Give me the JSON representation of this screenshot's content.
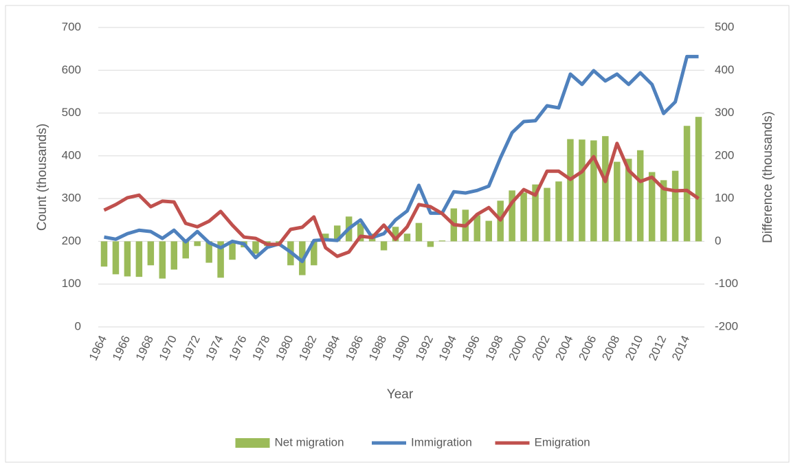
{
  "chart_data": {
    "type": "bar-line",
    "x_label": "Year",
    "y_label": "Count (thousands)",
    "y2_label": "Difference (thousands)",
    "categories": [
      "1964",
      null,
      "1966",
      null,
      "1968",
      null,
      "1970",
      null,
      "1972",
      null,
      "1974",
      null,
      "1976",
      null,
      "1978",
      null,
      "1980",
      null,
      "1982",
      null,
      "1984",
      null,
      "1986",
      null,
      "1988",
      null,
      "1990",
      null,
      "1992",
      null,
      "1994",
      null,
      "1996",
      null,
      "1998",
      null,
      "2000",
      null,
      "2002",
      null,
      "2004",
      null,
      "2006",
      null,
      "2008",
      null,
      "2010",
      null,
      "2012",
      null,
      "2014",
      null
    ],
    "series": [
      {
        "name": "Net migration",
        "type": "bar",
        "axis": "y2",
        "color": "#9bbb59",
        "values": [
          -59,
          -77,
          -82,
          -83,
          -56,
          -87,
          -66,
          -40,
          -11,
          -50,
          -85,
          -43,
          -14,
          -29,
          -11,
          -5,
          -56,
          -79,
          -56,
          18,
          37,
          58,
          42,
          18,
          -21,
          34,
          18,
          43,
          -13,
          2,
          77,
          74,
          61,
          48,
          95,
          119,
          114,
          133,
          125,
          140,
          239,
          238,
          236,
          246,
          186,
          193,
          213,
          162,
          143,
          165,
          270,
          291
        ]
      },
      {
        "name": "Immigration",
        "type": "line",
        "axis": "y",
        "color": "#4f81bd",
        "values": [
          210,
          205,
          218,
          226,
          223,
          207,
          226,
          199,
          223,
          197,
          185,
          200,
          194,
          162,
          186,
          194,
          175,
          153,
          202,
          204,
          202,
          230,
          250,
          209,
          218,
          250,
          271,
          331,
          266,
          266,
          316,
          313,
          319,
          329,
          395,
          454,
          480,
          482,
          517,
          512,
          591,
          567,
          599,
          575,
          591,
          567,
          594,
          567,
          499,
          526,
          632,
          632
        ]
      },
      {
        "name": "Emigration",
        "type": "line",
        "axis": "y",
        "color": "#c0504d",
        "values": [
          273,
          286,
          302,
          308,
          281,
          294,
          292,
          242,
          234,
          247,
          270,
          238,
          210,
          207,
          193,
          193,
          228,
          233,
          257,
          185,
          165,
          175,
          212,
          209,
          238,
          205,
          234,
          286,
          281,
          265,
          239,
          236,
          263,
          279,
          250,
          291,
          321,
          308,
          364,
          364,
          345,
          363,
          398,
          340,
          429,
          366,
          340,
          350,
          323,
          318,
          319,
          300
        ]
      }
    ],
    "ylim": [
      0,
      700
    ],
    "yticks": [
      0,
      100,
      200,
      300,
      400,
      500,
      600,
      700
    ],
    "y2lim": [
      -200,
      500
    ],
    "y2ticks": [
      -200,
      -100,
      0,
      100,
      200,
      300,
      400,
      500
    ],
    "grid": true,
    "legend": "bottom"
  }
}
